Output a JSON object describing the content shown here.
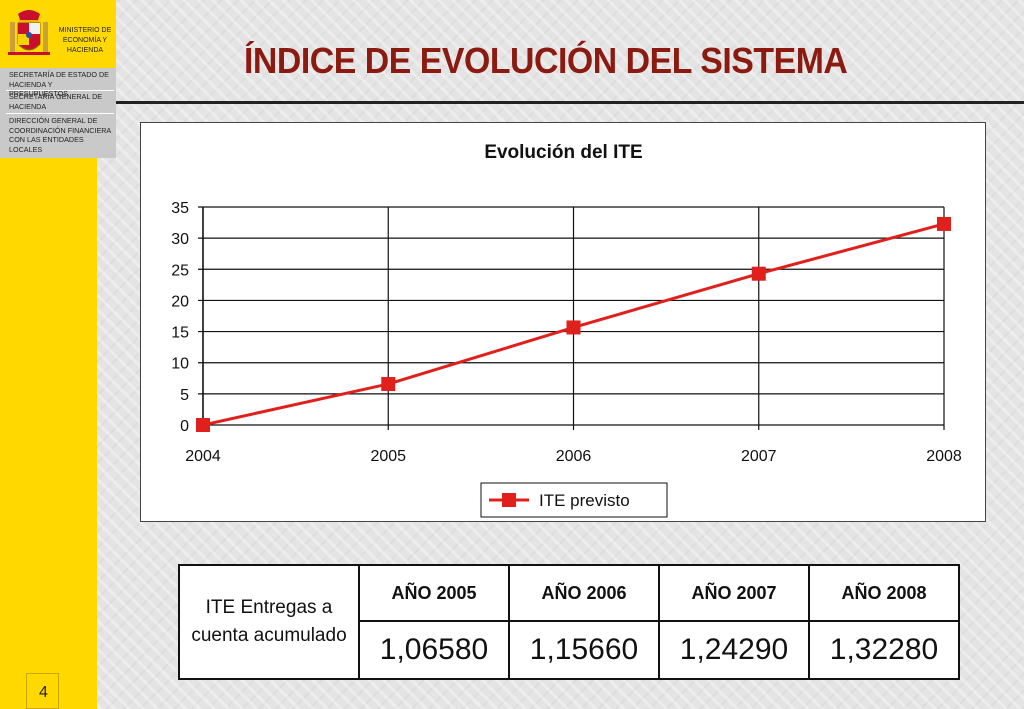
{
  "header": {
    "ministerio_lines": [
      "MINISTERIO DE",
      "ECONOMÍA Y",
      "HACIENDA"
    ],
    "title": "ÍNDICE DE EVOLUCIÓN DEL SISTEMA"
  },
  "sidebar": {
    "lines_1": [
      "SECRETARÍA DE  ESTADO DE",
      "HACIENDA Y PRESUPUESTOS"
    ],
    "lines_2": [
      "SECRETARÍA GENERAL DE",
      "HACIENDA"
    ],
    "lines_3": [
      "DIRECCIÓN GENERAL DE",
      "COORDINACIÓN FINANCIERA",
      "CON  LAS ENTIDADES",
      "LOCALES"
    ],
    "page_number": "4"
  },
  "chart_data": {
    "type": "line",
    "title": "Evolución del ITE",
    "x": [
      2004,
      2005,
      2006,
      2007,
      2008
    ],
    "series": [
      {
        "name": "ITE previsto",
        "values": [
          0,
          6.58,
          15.66,
          24.29,
          32.28
        ],
        "color": "#e0201c"
      }
    ],
    "ylim": [
      0,
      35
    ],
    "yticks": [
      0,
      5,
      10,
      15,
      20,
      25,
      30,
      35
    ],
    "xticks": [
      "2004",
      "2005",
      "2006",
      "2007",
      "2008"
    ],
    "grid": true,
    "legend": "bottom"
  },
  "table": {
    "row_label": "ITE Entregas a cuenta acumulado",
    "headers": [
      "AÑO 2005",
      "AÑO 2006",
      "AÑO 2007",
      "AÑO 2008"
    ],
    "values": [
      "1,06580",
      "1,15660",
      "1,24290",
      "1,32280"
    ]
  },
  "colors": {
    "sidebar": "#ffd800",
    "title": "#8b1a10",
    "series": "#e0201c"
  }
}
